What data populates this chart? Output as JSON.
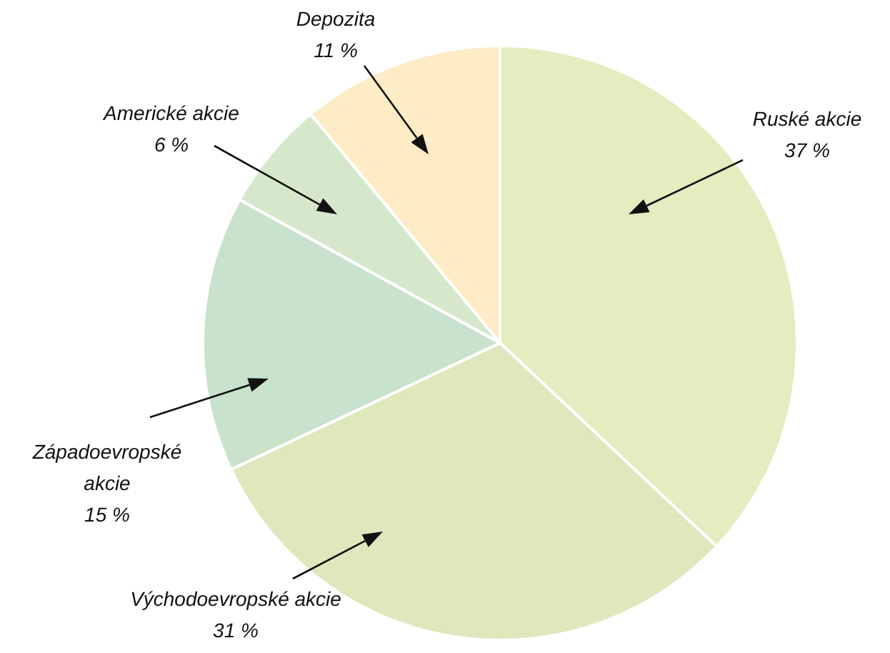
{
  "chart_data": {
    "type": "pie",
    "categories": [
      "Ruské akcie",
      "Východoevropské akcie",
      "Západoevropské akcie",
      "Americké akcie",
      "Depozita"
    ],
    "values": [
      37,
      31,
      15,
      6,
      11
    ],
    "value_labels": [
      "37 %",
      "31 %",
      "15 %",
      "6 %",
      "11 %"
    ],
    "colors": [
      "#e6ebc0",
      "#dfe8bd",
      "#c9e2cb",
      "#d5e8cc",
      "#fdecc6"
    ]
  }
}
